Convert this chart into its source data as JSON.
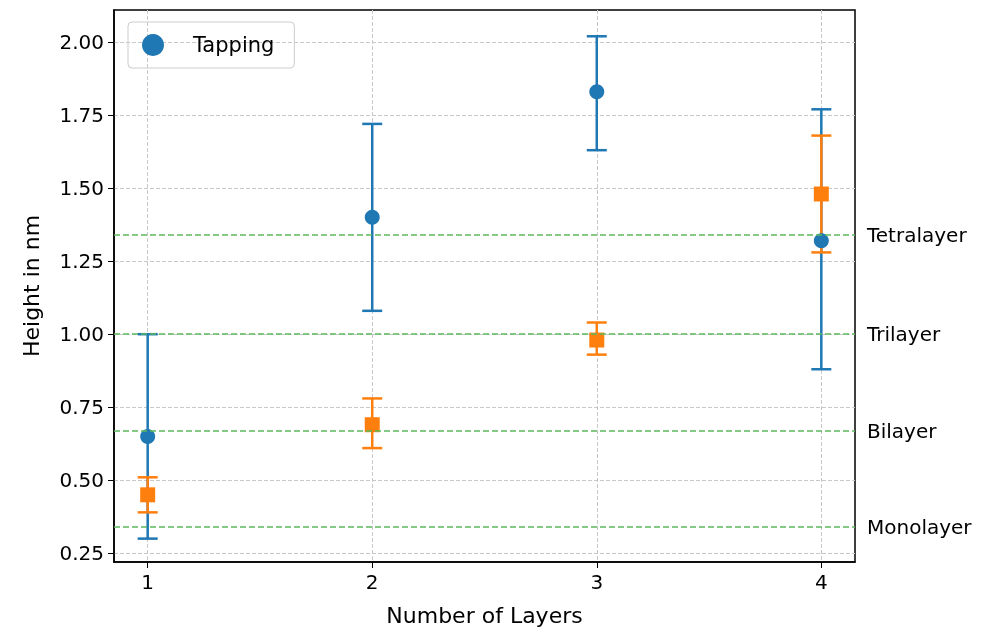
{
  "chart_data": {
    "type": "scatter",
    "xlabel": "Number of Layers",
    "ylabel": "Height in nm",
    "x": [
      1,
      2,
      3,
      4
    ],
    "xlim": [
      0.85,
      4.15
    ],
    "xticks": [
      1,
      2,
      3,
      4
    ],
    "ylim": [
      0.22,
      2.11
    ],
    "yticks": [
      {
        "value": 0.25,
        "label": "0.25"
      },
      {
        "value": 0.5,
        "label": "0.50"
      },
      {
        "value": 0.75,
        "label": "0.75"
      },
      {
        "value": 1.0,
        "label": "1.00"
      },
      {
        "value": 1.25,
        "label": "1.25"
      },
      {
        "value": 1.5,
        "label": "1.50"
      },
      {
        "value": 1.75,
        "label": "1.75"
      },
      {
        "value": 2.0,
        "label": "2.00"
      }
    ],
    "series": [
      {
        "name": "Tapping",
        "color": "#1f77b4",
        "marker": "circle",
        "values": [
          0.65,
          1.4,
          1.83,
          1.32
        ],
        "errors": [
          [
            0.3,
            1.0
          ],
          [
            1.08,
            1.72
          ],
          [
            1.63,
            2.02
          ],
          [
            0.88,
            1.77
          ]
        ]
      },
      {
        "color": "#ff7f0e",
        "marker": "square",
        "values": [
          0.45,
          0.69,
          0.98,
          1.48
        ],
        "errors": [
          [
            0.39,
            0.51
          ],
          [
            0.61,
            0.78
          ],
          [
            0.93,
            1.04
          ],
          [
            1.28,
            1.68
          ]
        ]
      }
    ],
    "ref_lines": [
      {
        "axis": "y",
        "value": 1.34,
        "label": "Tetralayer",
        "color": "#5cb85c",
        "line_style": "dashed"
      },
      {
        "axis": "y",
        "value": 1.0,
        "label": "Trilayer",
        "color": "#5cb85c",
        "line_style": "dashed"
      },
      {
        "axis": "y",
        "value": 0.67,
        "label": "Bilayer",
        "color": "#5cb85c",
        "line_style": "dashed"
      },
      {
        "axis": "y",
        "value": 0.335,
        "label": "Monolayer",
        "color": "#5cb85c",
        "line_style": "dashed"
      }
    ],
    "grid": true,
    "legend": "top left"
  }
}
